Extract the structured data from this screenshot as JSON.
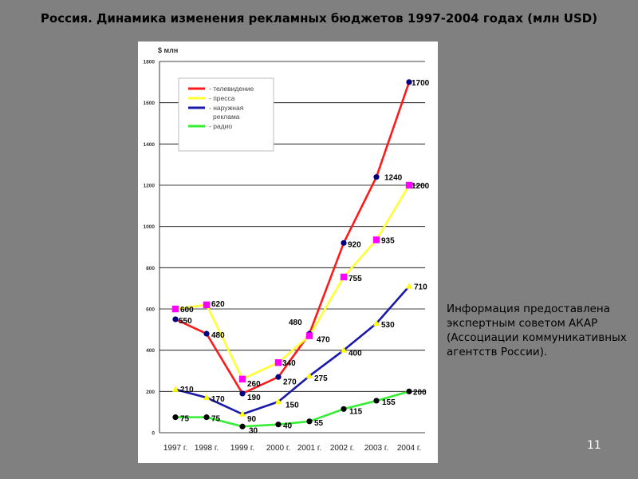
{
  "slide": {
    "title": "Россия. Динамика изменения рекламных бюджетов 1997-2004 годах (млн USD)",
    "note_lines": [
      "Информация предоставлена",
      "экспертным советом АКАР",
      "(Ассоциации коммуникативных",
      "агентств России)."
    ],
    "page_number": "11"
  },
  "chart_data": {
    "type": "line",
    "ylabel": "$ млн",
    "ylim": [
      0,
      1800
    ],
    "yticks": [
      "0",
      "200",
      "400",
      "600",
      "800",
      "1000",
      "1200",
      "1400",
      "1600",
      "1800"
    ],
    "categories": [
      "1997 г.",
      "1998 г.",
      "1999 г.",
      "2000 г.",
      "2001 г.",
      "2002 г.",
      "2003 г.",
      "2004 г."
    ],
    "grid": true,
    "legend_position": "top-left",
    "series": [
      {
        "name": "- телевидение",
        "color": "#ff1a1a",
        "marker": "circle",
        "marker_color": "#000080",
        "values": [
          550,
          480,
          190,
          270,
          480,
          920,
          1240,
          1700
        ],
        "labels": [
          "550",
          "480",
          "190",
          "270",
          "480",
          "920",
          "1240",
          "1700"
        ]
      },
      {
        "name": "- пресса",
        "color": "#ffff33",
        "marker": "square",
        "marker_color": "#ff00ff",
        "values": [
          600,
          620,
          260,
          340,
          470,
          755,
          935,
          1200
        ],
        "labels": [
          "600",
          "620",
          "260",
          "340",
          "470",
          "755",
          "935",
          "1200"
        ]
      },
      {
        "name": "- наружная реклама",
        "legend_lines": [
          "- наружная",
          "реклама"
        ],
        "color": "#1a1aaa",
        "marker": "triangle",
        "marker_color": "#ffff00",
        "values": [
          210,
          170,
          90,
          150,
          275,
          400,
          530,
          710
        ],
        "labels": [
          "210",
          "170",
          "90",
          "150",
          "275",
          "400",
          "530",
          "710"
        ]
      },
      {
        "name": "- радио",
        "color": "#33ee33",
        "marker": "circle",
        "marker_color": "#000000",
        "values": [
          75,
          75,
          30,
          40,
          55,
          115,
          155,
          200
        ],
        "labels": [
          "75",
          "75",
          "30",
          "40",
          "55",
          "115",
          "155",
          "200"
        ]
      }
    ]
  }
}
